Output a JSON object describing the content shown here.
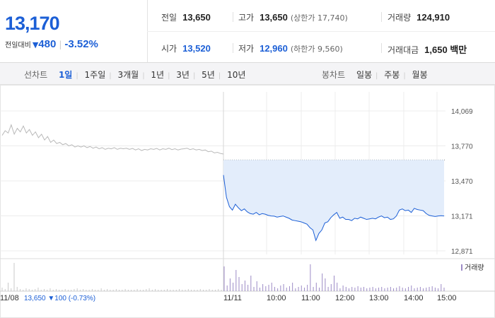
{
  "quote": {
    "price": "13,170",
    "change_label": "전일대비",
    "change_arrow": "▼",
    "change_amount": "480",
    "change_pct": "-3.52%",
    "info": [
      {
        "label": "전일",
        "value": "13,650",
        "sub": ""
      },
      {
        "label": "고가",
        "value": "13,650",
        "sub": "(상한가 17,740)"
      },
      {
        "label": "거래량",
        "value": "124,910",
        "sub": ""
      },
      {
        "label": "시가",
        "value": "13,520",
        "sub": ""
      },
      {
        "label": "저가",
        "value": "12,960",
        "sub": "(하한가 9,560)"
      },
      {
        "label": "거래대금",
        "value": "1,650 백만",
        "sub": ""
      }
    ]
  },
  "toolbar": {
    "line_label": "선차트",
    "line_periods": [
      "1일",
      "1주일",
      "3개월",
      "1년",
      "3년",
      "5년",
      "10년"
    ],
    "active_period": "1일",
    "candle_label": "봉차트",
    "candle_periods": [
      "일봉",
      "주봉",
      "월봉"
    ]
  },
  "colors": {
    "accent": "#1c5fd6",
    "prev_day_line": "#b9b9b9",
    "area_fill": "#e3edfb",
    "volume_today": "#9c8bc6",
    "volume_prev": "#c9c9c9"
  },
  "chart_data": {
    "type": "area",
    "y_ticks": [
      "14,069",
      "13,770",
      "13,470",
      "13,171",
      "12,871"
    ],
    "y_tick_values": [
      14069,
      13770,
      13470,
      13171,
      12871
    ],
    "ylim": [
      12871,
      14069
    ],
    "reference_value": 13650,
    "x_labels": [
      "11/08",
      "11/11",
      "10:00",
      "11:00",
      "12:00",
      "13:00",
      "14:00",
      "15:00"
    ],
    "prev_day_summary": {
      "date": "11/08",
      "close": "13,650",
      "arrow": "▼",
      "change": "100",
      "pct": "(-0.73%)"
    },
    "volume_legend": "거래량",
    "series": [
      {
        "session": "11/08",
        "values": [
          13860,
          13900,
          13880,
          13950,
          13870,
          13920,
          13890,
          13940,
          13880,
          13910,
          13860,
          13890,
          13840,
          13870,
          13820,
          13850,
          13800,
          13820,
          13790,
          13800,
          13780,
          13790,
          13770,
          13780,
          13760,
          13770,
          13760,
          13770,
          13755,
          13765,
          13750,
          13760,
          13745,
          13755,
          13740,
          13750,
          13745,
          13755,
          13740,
          13750,
          13745,
          13750,
          13740,
          13748,
          13735,
          13745,
          13730,
          13740,
          13735,
          13745,
          13740,
          13748,
          13735,
          13745,
          13740,
          13750,
          13738,
          13745,
          13735,
          13742,
          13745,
          13750,
          13738,
          13745,
          13735,
          13740,
          13730,
          13735,
          13720,
          13725,
          13710,
          13715,
          13705,
          13700
        ]
      },
      {
        "session": "11/11",
        "values": [
          13520,
          13330,
          13250,
          13220,
          13270,
          13240,
          13215,
          13230,
          13205,
          13190,
          13185,
          13200,
          13180,
          13190,
          13185,
          13175,
          13170,
          13168,
          13160,
          13165,
          13170,
          13160,
          13150,
          13135,
          13130,
          13125,
          13120,
          13110,
          13100,
          13070,
          13050,
          12960,
          13020,
          13050,
          13110,
          13120,
          13155,
          13180,
          13200,
          13150,
          13160,
          13140,
          13140,
          13130,
          13150,
          13145,
          13160,
          13150,
          13140,
          13145,
          13150,
          13145,
          13160,
          13170,
          13155,
          13160,
          13140,
          13145,
          13170,
          13220,
          13230,
          13215,
          13220,
          13200,
          13235,
          13225,
          13220,
          13215,
          13190,
          13175,
          13170,
          13165,
          13170,
          13172,
          13170
        ]
      }
    ],
    "volume": {
      "prev": [
        5,
        3,
        12,
        4,
        40,
        6,
        3,
        2,
        4,
        3,
        2,
        3,
        5,
        2,
        3,
        2,
        4,
        2,
        3,
        2,
        2,
        3,
        2,
        2,
        3,
        4,
        2,
        3,
        2,
        2,
        3,
        2,
        2,
        4,
        2,
        3,
        2,
        2,
        3,
        2,
        2,
        3,
        2,
        2,
        2,
        3,
        2,
        2,
        3,
        4,
        2,
        3,
        2,
        2,
        2,
        3,
        2,
        2,
        2,
        3,
        2,
        2,
        3,
        2,
        2,
        2,
        3,
        2,
        2,
        3,
        2,
        2,
        3,
        2
      ],
      "today": [
        35,
        8,
        18,
        12,
        30,
        20,
        10,
        15,
        9,
        22,
        6,
        14,
        5,
        10,
        7,
        9,
        12,
        6,
        4,
        8,
        10,
        5,
        7,
        12,
        4,
        6,
        8,
        5,
        9,
        38,
        6,
        12,
        5,
        25,
        18,
        6,
        10,
        22,
        12,
        4,
        8,
        6,
        4,
        6,
        5,
        7,
        5,
        6,
        4,
        5,
        6,
        4,
        5,
        6,
        4,
        5,
        6,
        4,
        5,
        7,
        5,
        4,
        6,
        8,
        4,
        5,
        6,
        4,
        5,
        6,
        7,
        5,
        4,
        10,
        5
      ]
    },
    "grid": true
  }
}
